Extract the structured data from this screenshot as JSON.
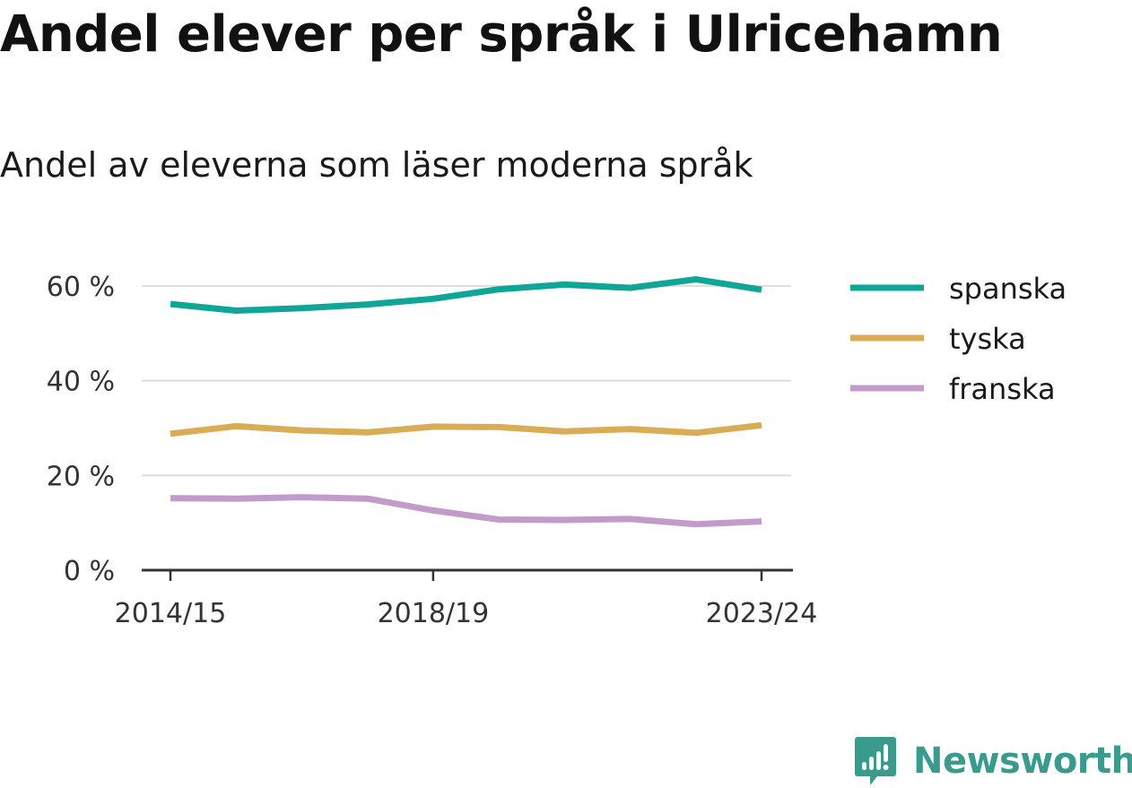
{
  "title": "Andel elever per språk i Ulricehamn",
  "subtitle": "Andel av eleverna som läser moderna språk",
  "brand": {
    "name": "Newsworthy",
    "color": "#3a9a8e",
    "icon": "chart-speech-bubble-icon"
  },
  "chart_data": {
    "type": "line",
    "x": [
      "2014/15",
      "2015/16",
      "2016/17",
      "2017/18",
      "2018/19",
      "2019/20",
      "2020/21",
      "2021/22",
      "2022/23",
      "2023/24"
    ],
    "x_tick_labels": [
      "2014/15",
      "2018/19",
      "2023/24"
    ],
    "y_ticks": [
      0,
      20,
      40,
      60
    ],
    "y_tick_labels": [
      "0 %",
      "20 %",
      "40 %",
      "60 %"
    ],
    "ylim": [
      0,
      66
    ],
    "grid": true,
    "legend_position": "right",
    "series": [
      {
        "name": "spanska",
        "color": "#0fa597",
        "values": [
          56.2,
          54.8,
          55.3,
          56.1,
          57.3,
          59.3,
          60.3,
          59.6,
          61.4,
          59.2
        ]
      },
      {
        "name": "tyska",
        "color": "#d8ad56",
        "values": [
          28.8,
          30.4,
          29.5,
          29.1,
          30.3,
          30.2,
          29.3,
          29.8,
          29.0,
          30.6
        ]
      },
      {
        "name": "franska",
        "color": "#c39bcb",
        "values": [
          15.2,
          15.1,
          15.4,
          15.1,
          12.6,
          10.7,
          10.6,
          10.8,
          9.7,
          10.3
        ]
      }
    ]
  }
}
